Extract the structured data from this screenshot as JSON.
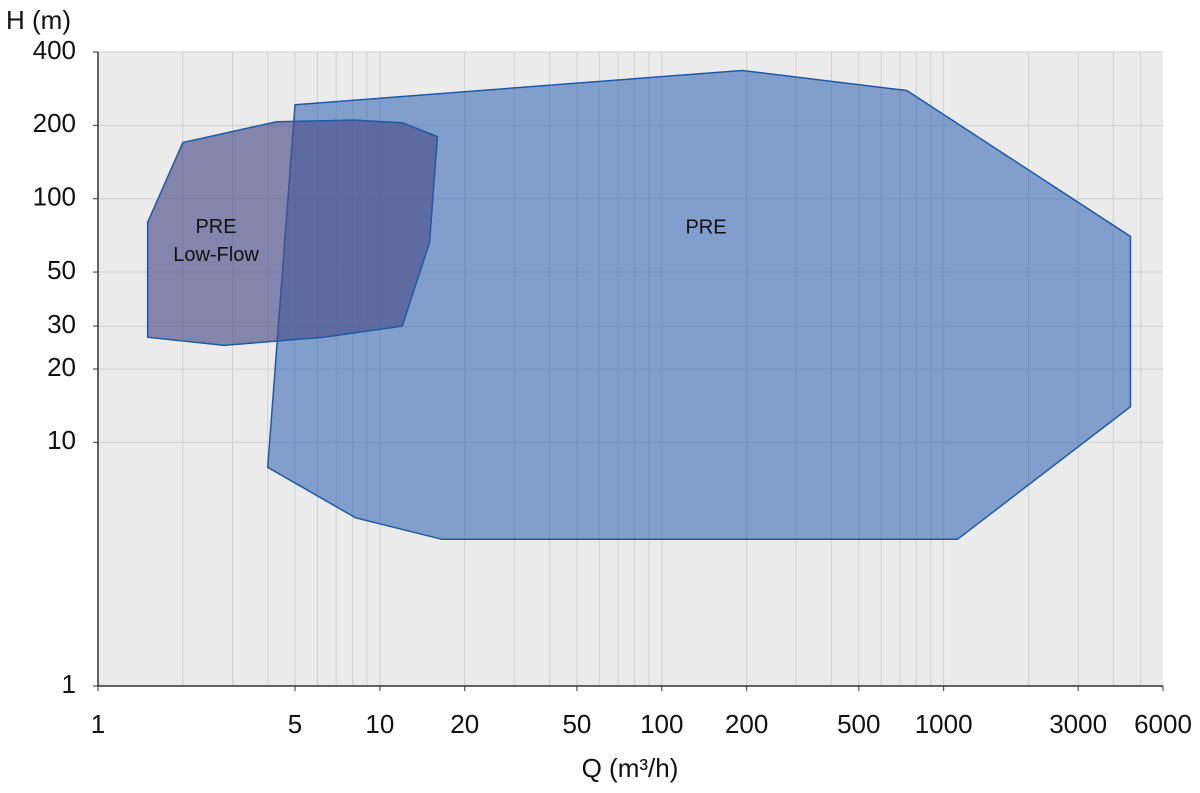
{
  "chart_data": {
    "type": "area",
    "x_label": "Q (m³/h)",
    "y_label": "H (m)",
    "xscale": "log",
    "yscale": "log",
    "xlim": [
      1,
      6000
    ],
    "ylim": [
      1,
      400
    ],
    "xticks": [
      1,
      5,
      10,
      20,
      50,
      100,
      200,
      500,
      1000,
      3000,
      6000
    ],
    "yticks": [
      1,
      10,
      20,
      30,
      50,
      100,
      200,
      400
    ],
    "x_grid": [
      2,
      3,
      4,
      5,
      6,
      7,
      8,
      9,
      10,
      20,
      30,
      40,
      50,
      60,
      70,
      80,
      90,
      100,
      200,
      300,
      400,
      500,
      600,
      700,
      800,
      900,
      1000,
      2000,
      3000,
      4000,
      5000
    ],
    "y_grid": [
      10,
      20,
      30,
      50,
      100,
      200,
      400
    ],
    "series": [
      {
        "name": "PRE",
        "color": "#2c5fb3",
        "x": [
          5,
          193,
          740,
          4600,
          4600,
          1120,
          16.6,
          8.2,
          4
        ],
        "values": [
          243,
          336,
          278,
          70,
          14,
          4,
          4,
          4.9,
          7.9
        ]
      },
      {
        "name": "PRE Low-Flow",
        "color": "#4c4f8c",
        "x": [
          1.5,
          2,
          4.3,
          8.1,
          12,
          16,
          15,
          12,
          6.3,
          2.8,
          1.5
        ],
        "values": [
          80,
          170,
          207,
          210,
          205,
          180,
          66,
          30,
          27,
          25,
          27
        ]
      }
    ]
  }
}
